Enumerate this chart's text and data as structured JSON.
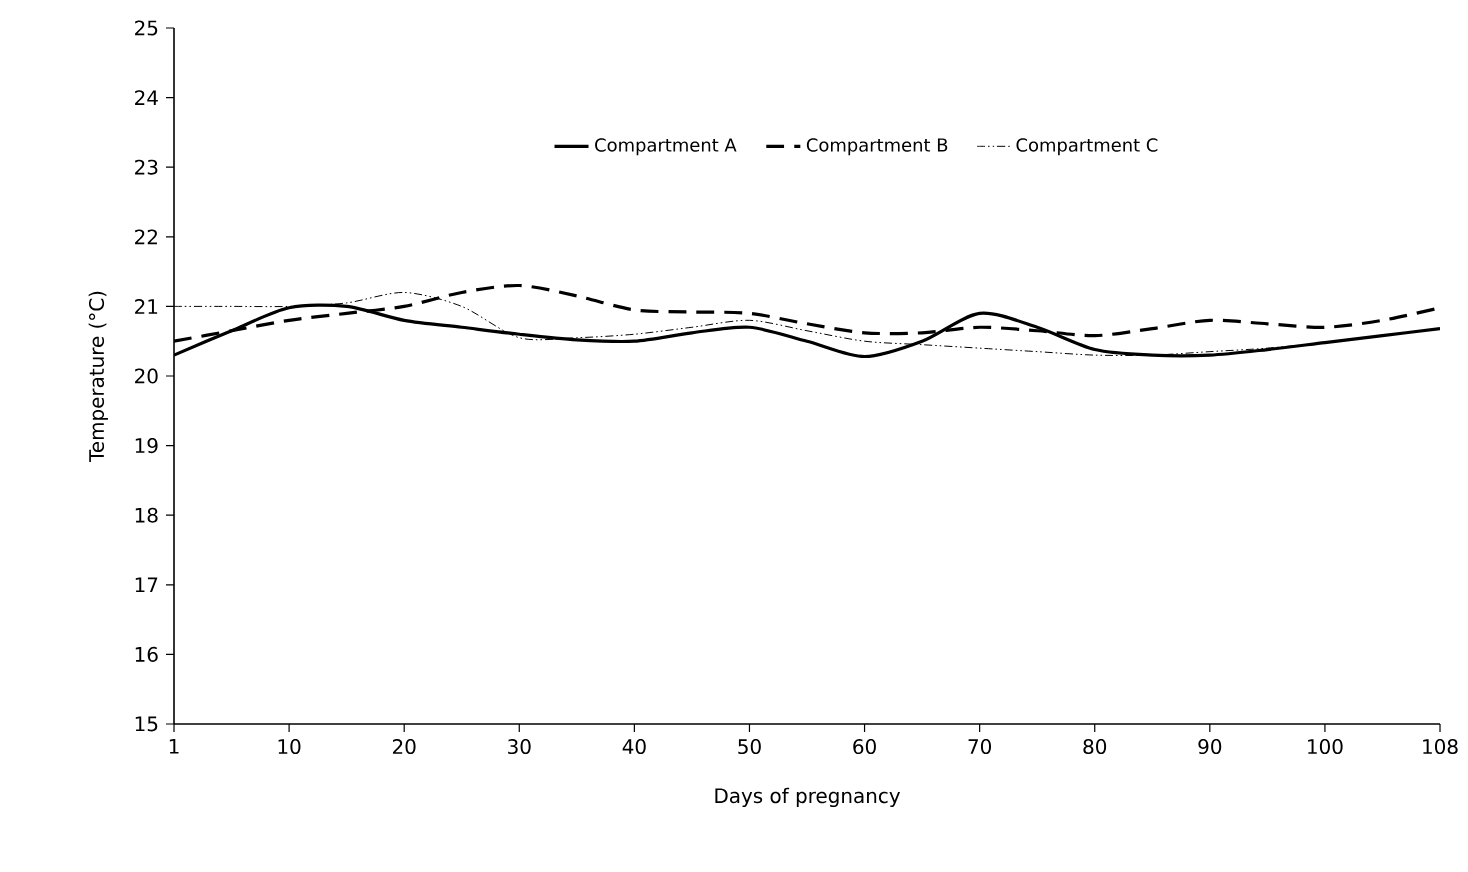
{
  "chart_data": {
    "type": "line",
    "xlabel": "Days of pregnancy",
    "ylabel": "Temperature (°C)",
    "categories": [
      "1",
      null,
      "10",
      null,
      "20",
      null,
      "30",
      null,
      "40",
      null,
      "50",
      null,
      "60",
      null,
      "70",
      null,
      "80",
      null,
      "90",
      null,
      "100",
      null,
      "108"
    ],
    "ylim": [
      15,
      25
    ],
    "yticks": [
      15,
      16,
      17,
      18,
      19,
      20,
      21,
      22,
      23,
      24,
      25
    ],
    "grid": false,
    "legend": "top",
    "marker": "none",
    "series": [
      {
        "name": "Compartment A",
        "color": "#000000",
        "line_style": "solid",
        "values": [
          20.3,
          20.65,
          20.98,
          21.0,
          20.8,
          20.7,
          20.6,
          20.52,
          20.5,
          20.62,
          20.7,
          20.5,
          20.28,
          20.5,
          20.9,
          20.7,
          20.38,
          20.3,
          20.3,
          20.38,
          20.48,
          20.58,
          20.68
        ]
      },
      {
        "name": "Compartment B",
        "color": "#000000",
        "line_style": "dashed",
        "values": [
          20.5,
          20.65,
          20.8,
          20.9,
          21.0,
          21.2,
          21.3,
          21.15,
          20.95,
          20.92,
          20.9,
          20.75,
          20.62,
          20.62,
          20.7,
          20.65,
          20.58,
          20.68,
          20.8,
          20.75,
          20.7,
          20.8,
          20.98
        ]
      },
      {
        "name": "Compartment C",
        "color": "#000000",
        "line_style": "dotted",
        "values": [
          21.0,
          21.0,
          21.0,
          21.05,
          21.2,
          21.0,
          20.55,
          20.55,
          20.6,
          20.7,
          20.8,
          20.65,
          20.5,
          20.45,
          20.4,
          20.35,
          20.3,
          20.3,
          20.35,
          20.4,
          20.48,
          20.58,
          20.68
        ]
      }
    ]
  }
}
